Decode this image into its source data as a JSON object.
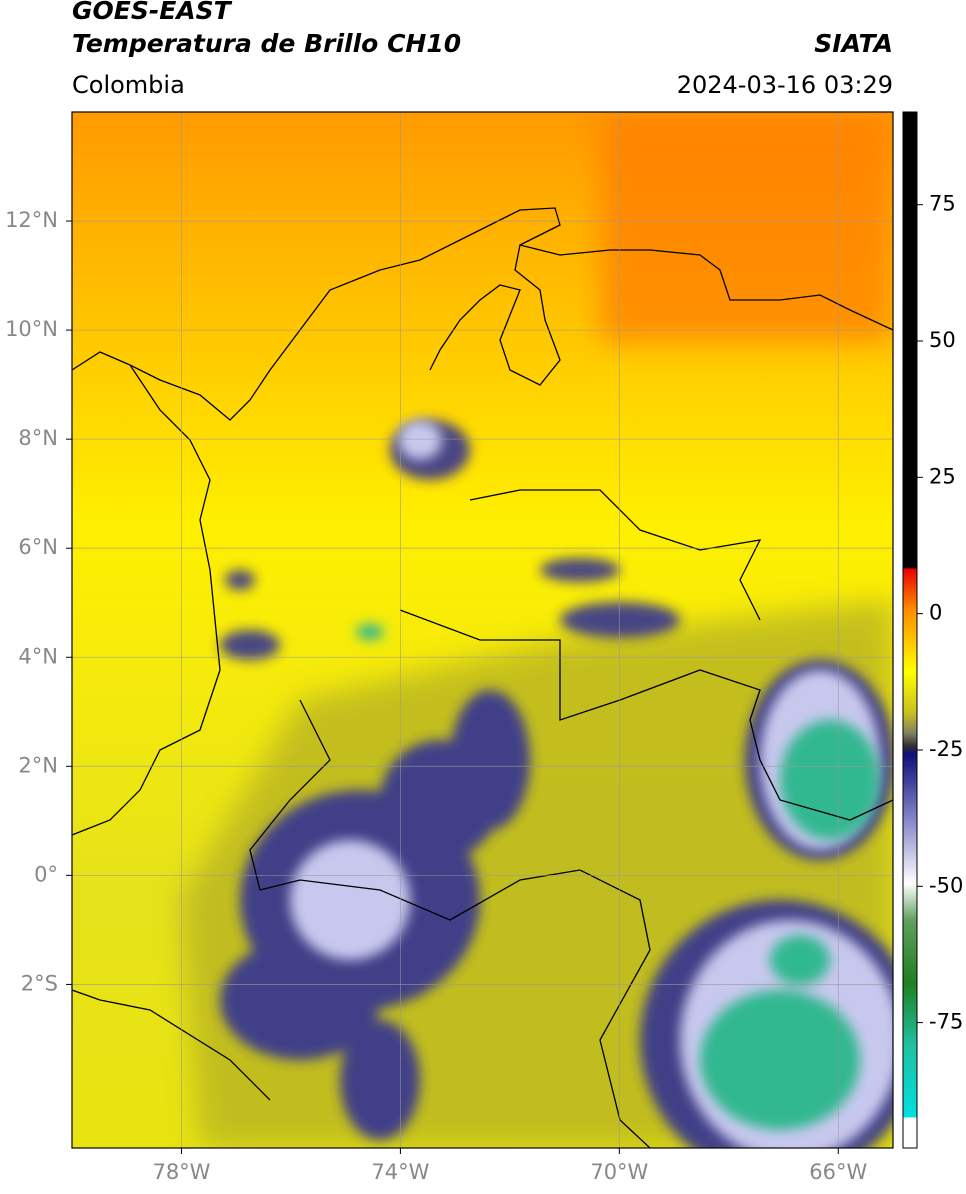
{
  "header": {
    "title": "GOES-EAST",
    "subtitle": "Temperatura de Brillo CH10",
    "source": "SIATA",
    "region": "Colombia",
    "datetime": "2024-03-16 03:29"
  },
  "map": {
    "lonlim": [
      -80,
      -65
    ],
    "latlim": [
      -5,
      14
    ],
    "lonticks": [
      {
        "value": -78,
        "label": "78°W"
      },
      {
        "value": -74,
        "label": "74°W"
      },
      {
        "value": -70,
        "label": "70°W"
      },
      {
        "value": -66,
        "label": "66°W"
      }
    ],
    "latticks": [
      {
        "value": 12,
        "label": "12°N"
      },
      {
        "value": 10,
        "label": "10°N"
      },
      {
        "value": 8,
        "label": "8°N"
      },
      {
        "value": 6,
        "label": "6°N"
      },
      {
        "value": 4,
        "label": "4°N"
      },
      {
        "value": 2,
        "label": "2°N"
      },
      {
        "value": 0,
        "label": "0°"
      },
      {
        "value": -2,
        "label": "2°S"
      }
    ],
    "grid": true
  },
  "colorbar": {
    "lim": [
      -98,
      92
    ],
    "ticks": [
      75,
      50,
      25,
      0,
      -25,
      -50,
      -75
    ]
  }
}
